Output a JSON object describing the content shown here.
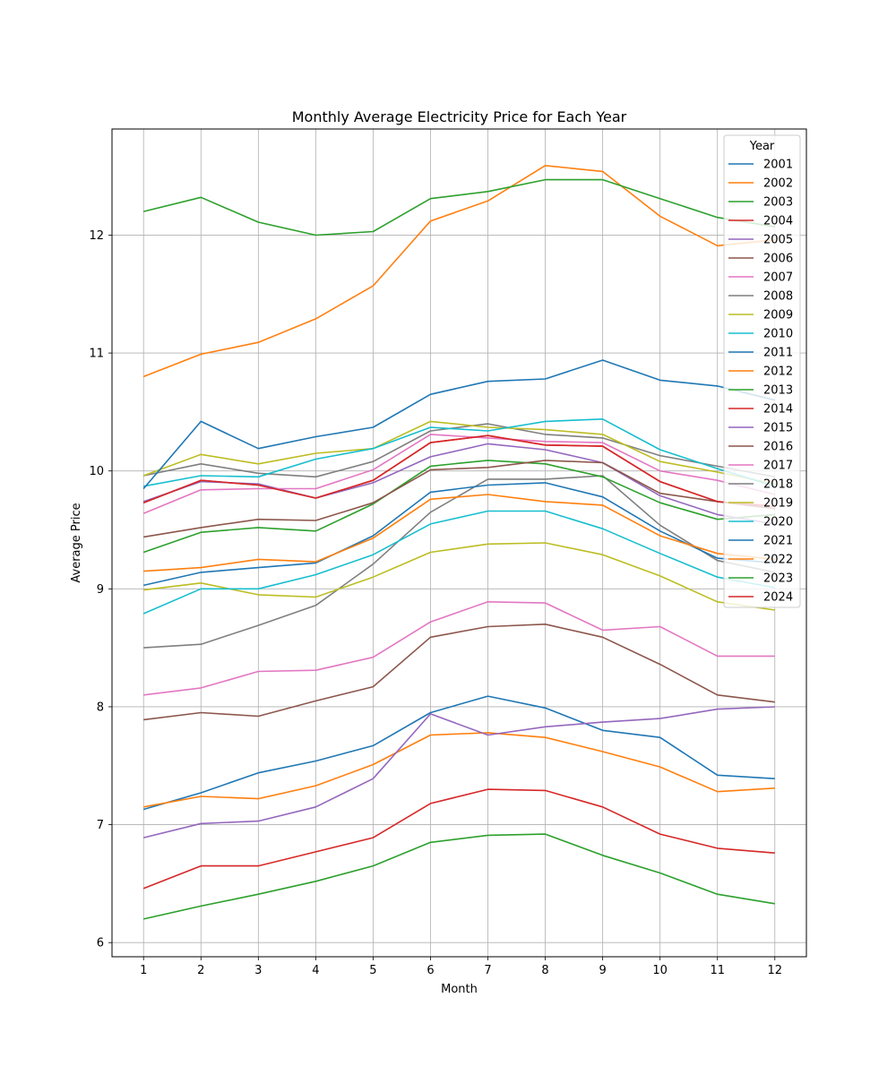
{
  "chart_data": {
    "type": "line",
    "title": "Monthly Average Electricity Price for Each Year",
    "xlabel": "Month",
    "ylabel": "Average Price",
    "x": [
      1,
      2,
      3,
      4,
      5,
      6,
      7,
      8,
      9,
      10,
      11,
      12
    ],
    "x_ticks": [
      "1",
      "2",
      "3",
      "4",
      "5",
      "6",
      "7",
      "8",
      "9",
      "10",
      "11",
      "12"
    ],
    "y_ticks": [
      "6",
      "7",
      "8",
      "9",
      "10",
      "11",
      "12"
    ],
    "xlim": [
      0.45,
      12.55
    ],
    "ylim": [
      5.88,
      12.9
    ],
    "grid": true,
    "legend": {
      "title": "Year",
      "placement": "top-right"
    },
    "series": [
      {
        "name": "2001",
        "color": "#1f77b4",
        "values": [
          7.13,
          7.27,
          7.44,
          7.54,
          7.67,
          7.95,
          8.09,
          7.99,
          7.8,
          7.74,
          7.42,
          7.39
        ]
      },
      {
        "name": "2002",
        "color": "#ff7f0e",
        "values": [
          7.15,
          7.24,
          7.22,
          7.33,
          7.51,
          7.76,
          7.78,
          7.74,
          7.62,
          7.49,
          7.28,
          7.31
        ]
      },
      {
        "name": "2003",
        "color": "#2ca02c",
        "values": [
          6.2,
          6.31,
          6.41,
          6.52,
          6.65,
          6.85,
          6.91,
          6.92,
          6.74,
          6.59,
          6.41,
          6.33
        ]
      },
      {
        "name": "2004",
        "color": "#d62728",
        "values": [
          6.46,
          6.65,
          6.65,
          6.77,
          6.89,
          7.18,
          7.3,
          7.29,
          7.15,
          6.92,
          6.8,
          6.76
        ]
      },
      {
        "name": "2005",
        "color": "#9467bd",
        "values": [
          6.89,
          7.01,
          7.03,
          7.15,
          7.39,
          7.94,
          7.76,
          7.83,
          7.87,
          7.9,
          7.98,
          8.0
        ]
      },
      {
        "name": "2006",
        "color": "#8c564b",
        "values": [
          7.89,
          7.95,
          7.92,
          8.05,
          8.17,
          8.59,
          8.68,
          8.7,
          8.59,
          8.36,
          8.1,
          8.04
        ]
      },
      {
        "name": "2007",
        "color": "#e377c2",
        "values": [
          8.1,
          8.16,
          8.3,
          8.31,
          8.42,
          8.72,
          8.89,
          8.88,
          8.65,
          8.68,
          8.43,
          8.43
        ]
      },
      {
        "name": "2008",
        "color": "#7f7f7f",
        "values": [
          8.5,
          8.53,
          8.69,
          8.86,
          9.21,
          9.65,
          9.93,
          9.93,
          9.96,
          9.54,
          9.24,
          9.14
        ]
      },
      {
        "name": "2009",
        "color": "#bcbd22",
        "values": [
          8.99,
          9.05,
          8.95,
          8.93,
          9.1,
          9.31,
          9.38,
          9.39,
          9.29,
          9.11,
          8.89,
          8.82
        ]
      },
      {
        "name": "2010",
        "color": "#17becf",
        "values": [
          8.79,
          9.0,
          9.0,
          9.12,
          9.29,
          9.55,
          9.66,
          9.66,
          9.51,
          9.3,
          9.1,
          9.01
        ]
      },
      {
        "name": "2011",
        "color": "#1f77b4",
        "values": [
          9.03,
          9.14,
          9.18,
          9.22,
          9.45,
          9.82,
          9.88,
          9.9,
          9.78,
          9.49,
          9.26,
          9.22
        ]
      },
      {
        "name": "2012",
        "color": "#ff7f0e",
        "values": [
          9.15,
          9.18,
          9.25,
          9.23,
          9.43,
          9.76,
          9.8,
          9.74,
          9.71,
          9.45,
          9.3,
          9.25
        ]
      },
      {
        "name": "2013",
        "color": "#2ca02c",
        "values": [
          9.31,
          9.48,
          9.52,
          9.49,
          9.72,
          10.04,
          10.09,
          10.06,
          9.95,
          9.73,
          9.59,
          9.63
        ]
      },
      {
        "name": "2014",
        "color": "#d62728",
        "values": [
          9.73,
          9.92,
          9.88,
          9.77,
          9.92,
          10.24,
          10.3,
          10.22,
          10.21,
          9.91,
          9.74,
          9.7
        ]
      },
      {
        "name": "2015",
        "color": "#9467bd",
        "values": [
          9.74,
          9.91,
          9.89,
          9.77,
          9.9,
          10.12,
          10.23,
          10.18,
          10.07,
          9.79,
          9.63,
          9.55
        ]
      },
      {
        "name": "2016",
        "color": "#8c564b",
        "values": [
          9.44,
          9.52,
          9.59,
          9.58,
          9.73,
          10.01,
          10.03,
          10.09,
          10.07,
          9.81,
          9.74,
          9.68
        ]
      },
      {
        "name": "2017",
        "color": "#e377c2",
        "values": [
          9.64,
          9.84,
          9.85,
          9.85,
          10.01,
          10.31,
          10.28,
          10.25,
          10.24,
          10.0,
          9.92,
          9.8
        ]
      },
      {
        "name": "2018",
        "color": "#7f7f7f",
        "values": [
          9.96,
          10.06,
          9.98,
          9.95,
          10.08,
          10.34,
          10.4,
          10.31,
          10.28,
          10.13,
          10.04,
          9.95
        ]
      },
      {
        "name": "2019",
        "color": "#bcbd22",
        "values": [
          9.96,
          10.14,
          10.06,
          10.15,
          10.19,
          10.42,
          10.37,
          10.35,
          10.31,
          10.08,
          9.99,
          9.89
        ]
      },
      {
        "name": "2020",
        "color": "#17becf",
        "values": [
          9.87,
          9.96,
          9.95,
          10.1,
          10.19,
          10.37,
          10.34,
          10.42,
          10.44,
          10.18,
          10.02,
          9.87
        ]
      },
      {
        "name": "2021",
        "color": "#1f77b4",
        "values": [
          9.85,
          10.42,
          10.19,
          10.29,
          10.37,
          10.65,
          10.76,
          10.78,
          10.94,
          10.77,
          10.72,
          10.6
        ]
      },
      {
        "name": "2022",
        "color": "#ff7f0e",
        "values": [
          10.8,
          10.99,
          11.09,
          11.29,
          11.57,
          12.12,
          12.29,
          12.59,
          12.54,
          12.16,
          11.91,
          11.96
        ]
      },
      {
        "name": "2023",
        "color": "#2ca02c",
        "values": [
          12.2,
          12.32,
          12.11,
          12.0,
          12.03,
          12.31,
          12.37,
          12.47,
          12.47,
          12.31,
          12.15,
          12.07
        ]
      },
      {
        "name": "2024",
        "color": "#d62728",
        "values": [
          9.73,
          9.92,
          9.88,
          9.77,
          9.92,
          10.24,
          10.3,
          10.22,
          10.21,
          9.91,
          9.74,
          9.7
        ]
      }
    ]
  }
}
